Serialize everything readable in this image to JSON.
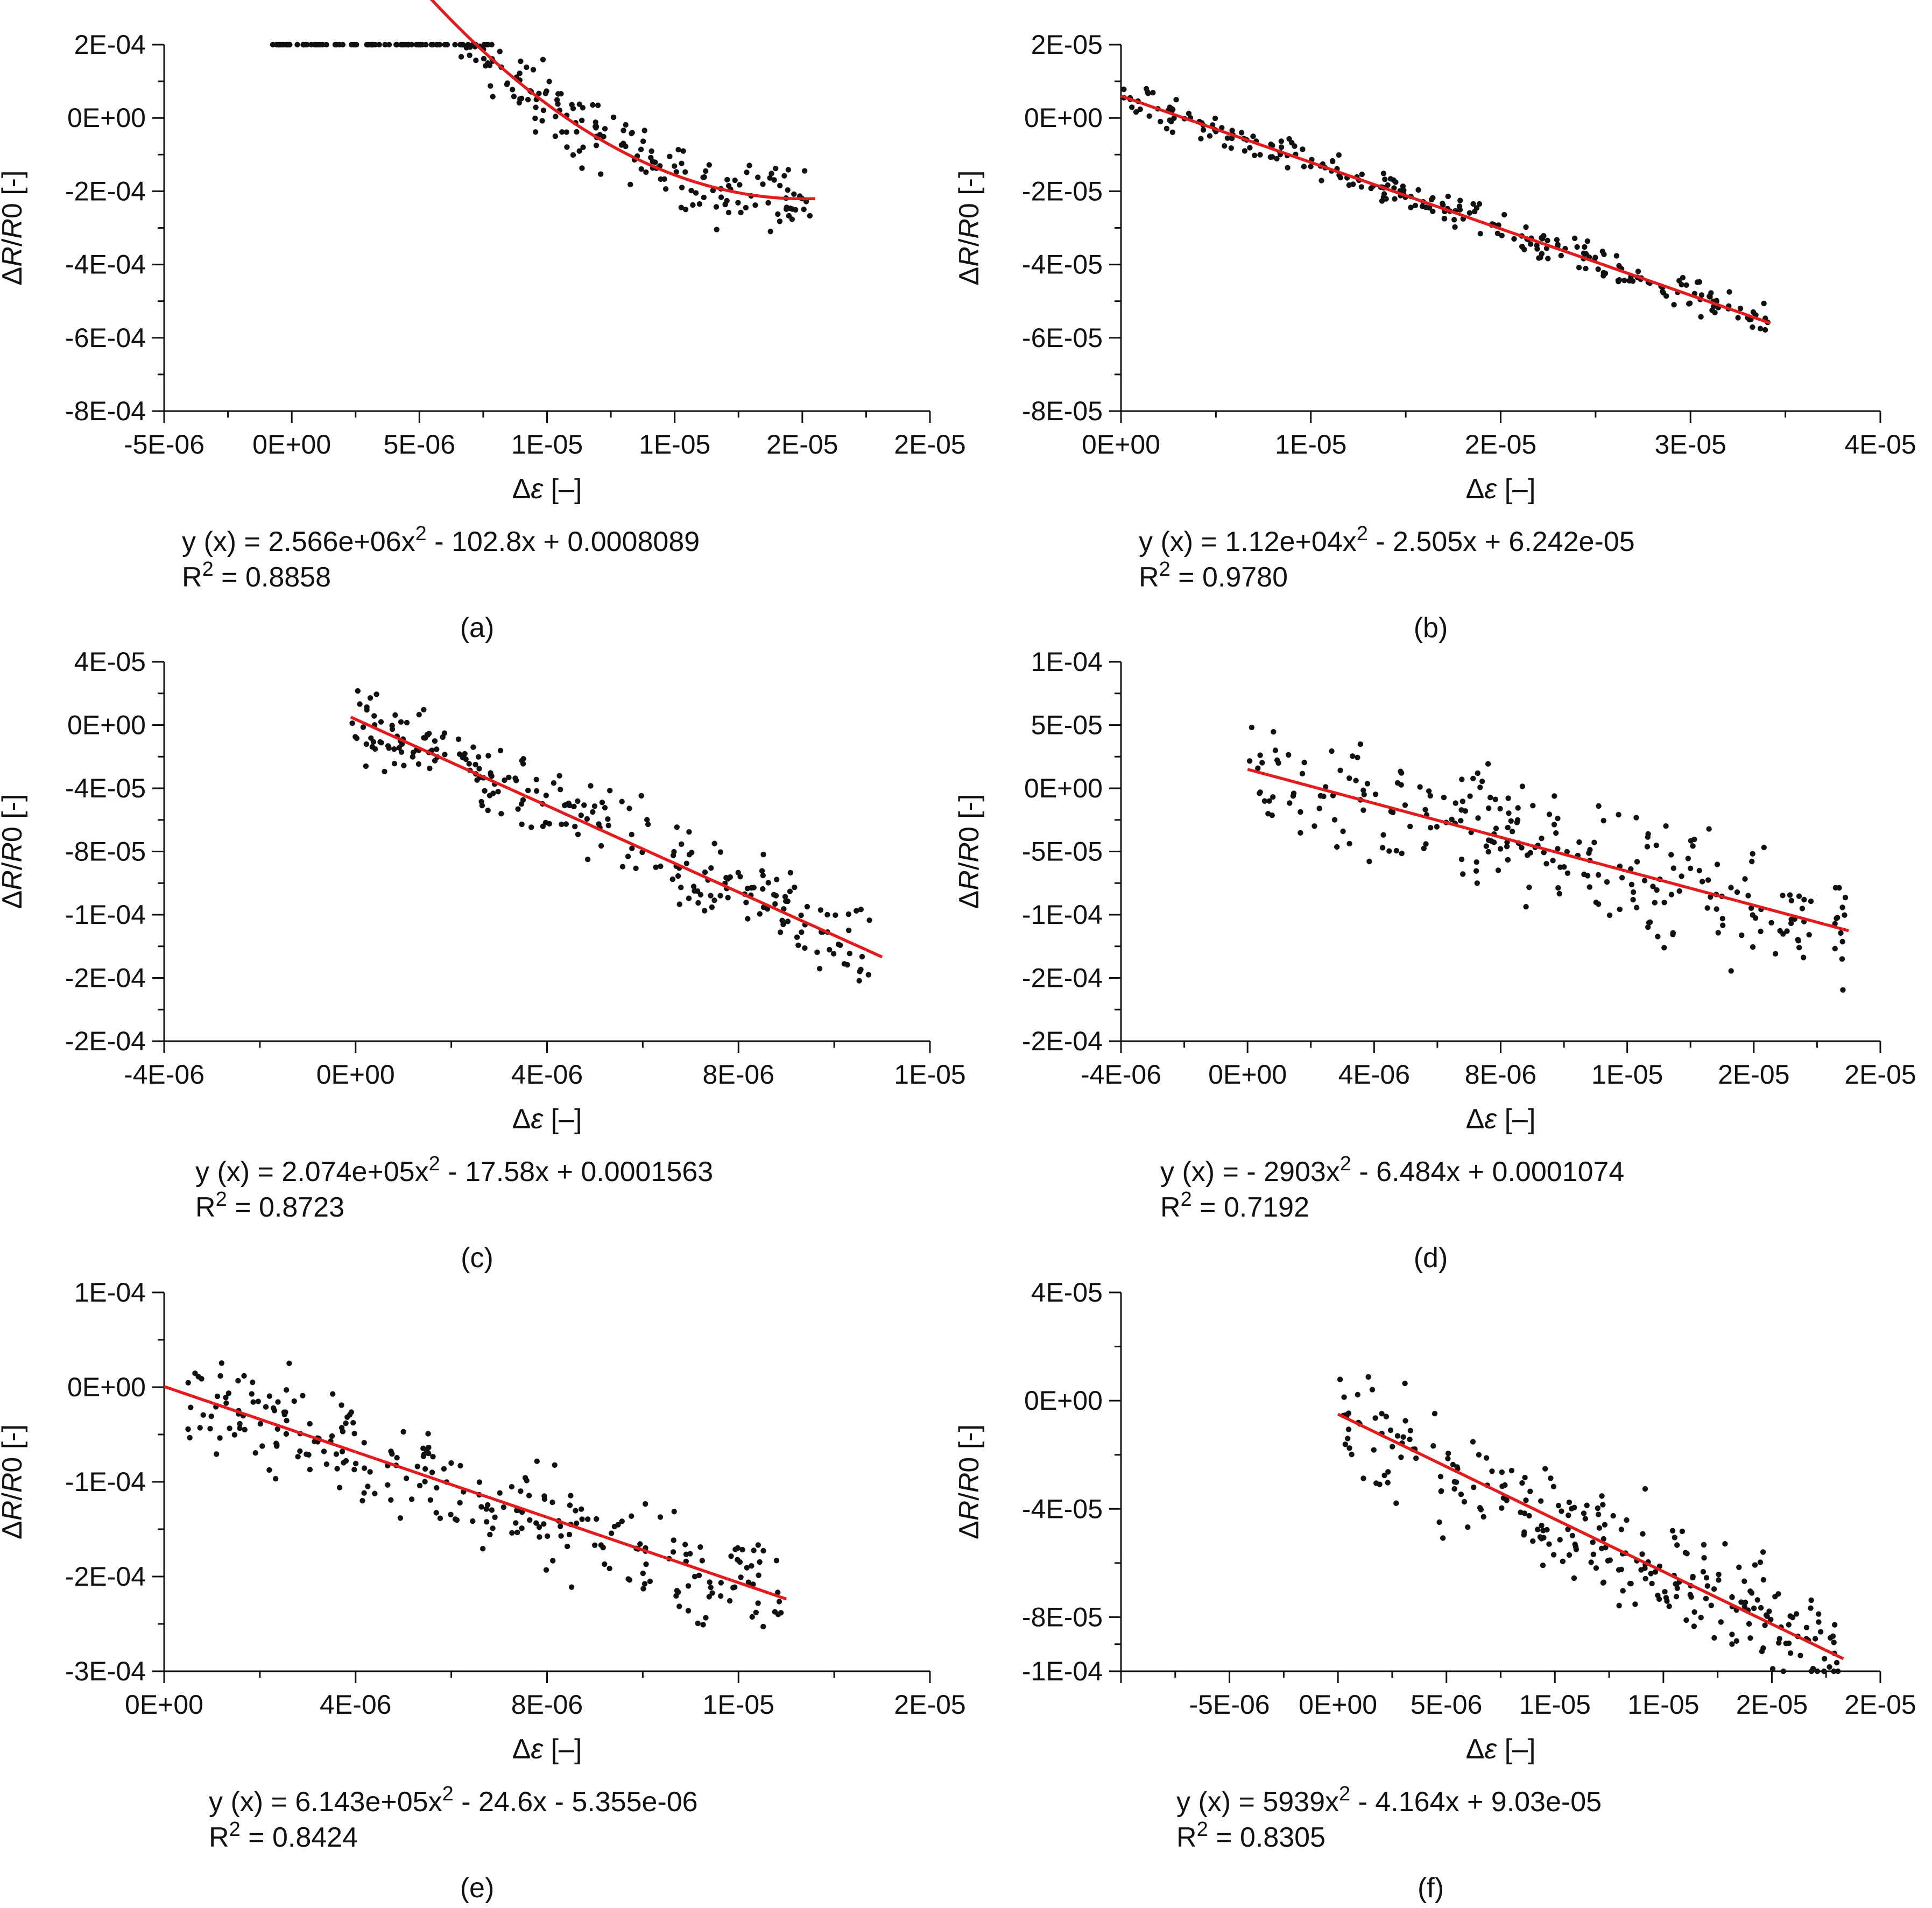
{
  "figure": {
    "ylabel_prefix": "Δ",
    "ylabel_r": "R",
    "ylabel_slash": "/",
    "ylabel_r0": "R",
    "ylabel_suffix": "0 [-]",
    "xlabel_delta": "Δ",
    "xlabel_eps": "ε",
    "xlabel_suffix": " [–]",
    "point_color": "#111111",
    "fit_color": "#e41a1c"
  },
  "chart_data": [
    {
      "id": "a",
      "type": "scatter",
      "label": "(a)",
      "xlim": [
        -5e-06,
        2.5e-05
      ],
      "ylim": [
        -0.0008,
        0.0002
      ],
      "xticks": [
        -5e-06,
        0,
        5e-06,
        1e-05,
        1.5e-05,
        2e-05,
        2.5e-05
      ],
      "xtick_labels": [
        "-5E-06",
        "0E+00",
        "5E-06",
        "1E-05",
        "1E-05",
        "2E-05",
        "2E-05"
      ],
      "yticks": [
        0.0002,
        0,
        -0.0002,
        -0.0004,
        -0.0006,
        -0.0008
      ],
      "ytick_labels": [
        "2E-04",
        "0E+00",
        "-2E-04",
        "-4E-04",
        "-6E-04",
        "-8E-04"
      ],
      "fit": {
        "a": 2566000,
        "b": -102.8,
        "c": 0.0008089,
        "x_range": [
          -1e-06,
          2.05e-05
        ]
      },
      "equation_head": "y (x) = 2.566e+06x",
      "equation_tail": " - 102.8x + 0.0008089",
      "r2_head": "R",
      "r2_tail": " = 0.8858",
      "points": {
        "n": 260,
        "x_range": [
          -1e-06,
          2.03e-05
        ],
        "noise": 4.5e-05,
        "ref": "poly",
        "pa": 2566000,
        "pb": -102.8,
        "pc": 0.0008089,
        "seed": 11
      }
    },
    {
      "id": "b",
      "type": "scatter",
      "label": "(b)",
      "xlim": [
        0,
        4e-05
      ],
      "ylim": [
        -8e-05,
        2e-05
      ],
      "xticks": [
        0,
        1e-05,
        2e-05,
        3e-05,
        4e-05
      ],
      "xtick_labels": [
        "0E+00",
        "1E-05",
        "2E-05",
        "3E-05",
        "4E-05"
      ],
      "yticks": [
        2e-05,
        0,
        -2e-05,
        -4e-05,
        -6e-05,
        -8e-05
      ],
      "ytick_labels": [
        "2E-05",
        "0E+00",
        "-2E-05",
        "-4E-05",
        "-6E-05",
        "-8E-05"
      ],
      "fit": {
        "a": 11200,
        "b": -2.505,
        "c": 6.242e-05,
        "x_range": [
          0,
          3.42e-05
        ]
      },
      "equation_head": "y (x) = 1.12e+04x",
      "equation_tail": " - 2.505x + 6.242e-05",
      "r2_head": "R",
      "r2_tail": " = 0.9780",
      "points": {
        "n": 260,
        "x_range": [
          0,
          3.42e-05
        ],
        "noise": 2.2e-06,
        "ref": "line",
        "y0": 6e-06,
        "y1": -5.6e-05,
        "seed": 23
      }
    },
    {
      "id": "c",
      "type": "scatter",
      "label": "(c)",
      "xlim": [
        -4e-06,
        1.2e-05
      ],
      "ylim": [
        -0.0002,
        4e-05
      ],
      "xticks": [
        -4e-06,
        0,
        4e-06,
        8e-06,
        1.2e-05
      ],
      "xtick_labels": [
        "-4E-06",
        "0E+00",
        "4E-06",
        "8E-06",
        "1E-05"
      ],
      "yticks": [
        4e-05,
        0,
        -4e-05,
        -8e-05,
        -0.00012,
        -0.00016,
        -0.0002
      ],
      "ytick_labels": [
        "4E-05",
        "0E+00",
        "-4E-05",
        "-8E-05",
        "-1E-04",
        "-2E-04",
        "-2E-04"
      ],
      "fit": {
        "a": 207400,
        "b": -17.58,
        "c": 0.0001563,
        "x_range": [
          -1e-07,
          1.1e-05
        ]
      },
      "equation_head": "y (x) = 2.074e+05x",
      "equation_tail": " - 17.58x + 0.0001563",
      "r2_head": "R",
      "r2_tail": " = 0.8723",
      "points": {
        "n": 250,
        "x_range": [
          -1e-07,
          1.08e-05
        ],
        "noise": 1.2e-05,
        "ref": "line",
        "y0": 5e-06,
        "y1": -0.000144,
        "seed": 37
      }
    },
    {
      "id": "d",
      "type": "scatter",
      "label": "(d)",
      "xlim": [
        -4e-06,
        2e-05
      ],
      "ylim": [
        -0.0002,
        0.0001
      ],
      "xticks": [
        -4e-06,
        0,
        4e-06,
        8e-06,
        1.2e-05,
        1.6e-05,
        2e-05
      ],
      "xtick_labels": [
        "-4E-06",
        "0E+00",
        "4E-06",
        "8E-06",
        "1E-05",
        "2E-05",
        "2E-05"
      ],
      "yticks": [
        0.0001,
        5e-05,
        0,
        -5e-05,
        -0.0001,
        -0.00015,
        -0.0002
      ],
      "ytick_labels": [
        "1E-04",
        "5E-05",
        "0E+00",
        "-5E-05",
        "-1E-04",
        "-2E-04",
        "-2E-04"
      ],
      "fit": {
        "a": -2903,
        "b": -6.484,
        "c": 0.0001074,
        "x_range": [
          0,
          1.9e-05
        ]
      },
      "equation_head": "y (x) = - 2903x",
      "equation_tail": " - 6.484x + 0.0001074",
      "r2_head": "R",
      "r2_tail": " = 0.7192",
      "points": {
        "n": 260,
        "x_range": [
          0,
          1.89e-05
        ],
        "noise": 2.2e-05,
        "ref": "line",
        "y0": 1.5e-05,
        "y1": -0.000112,
        "seed": 51
      }
    },
    {
      "id": "e",
      "type": "scatter",
      "label": "(e)",
      "xlim": [
        0,
        1.6e-05
      ],
      "ylim": [
        -0.0003,
        0.0001
      ],
      "xticks": [
        0,
        4e-06,
        8e-06,
        1.2e-05,
        1.6e-05
      ],
      "xtick_labels": [
        "0E+00",
        "4E-06",
        "8E-06",
        "1E-05",
        "2E-05"
      ],
      "yticks": [
        0.0001,
        0,
        -0.0001,
        -0.0002,
        -0.0003
      ],
      "ytick_labels": [
        "1E-04",
        "0E+00",
        "-1E-04",
        "-2E-04",
        "-3E-04"
      ],
      "fit": {
        "a": 614300,
        "b": -24.6,
        "c": -5.355e-06,
        "x_range": [
          0,
          1.3e-05
        ]
      },
      "equation_head": "y (x) = 6.143e+05x",
      "equation_tail": " - 24.6x - 5.355e-06",
      "r2_head": "R",
      "r2_tail": " = 0.8424",
      "points": {
        "n": 270,
        "x_range": [
          5e-07,
          1.29e-05
        ],
        "noise": 2.6e-05,
        "ref": "line",
        "y0": -8e-06,
        "y1": -0.000222,
        "seed": 67
      }
    },
    {
      "id": "f",
      "type": "scatter",
      "label": "(f)",
      "xlim": [
        -1e-05,
        2.5e-05
      ],
      "ylim": [
        -0.0001,
        4e-05
      ],
      "xticks": [
        -1e-05,
        -5e-06,
        0,
        5e-06,
        1e-05,
        1.5e-05,
        2e-05,
        2.5e-05
      ],
      "xtick_labels": [
        "",
        "-5E-06",
        "0E+00",
        "5E-06",
        "1E-05",
        "1E-05",
        "2E-05",
        "2E-05"
      ],
      "yticks": [
        4e-05,
        0,
        -4e-05,
        -8e-05,
        -0.0001
      ],
      "ytick_labels": [
        "4E-05",
        "0E+00",
        "-4E-05",
        "-8E-05",
        "-1E-04"
      ],
      "fit": {
        "a": 5939,
        "b": -4.164,
        "c": 9.03e-05,
        "x_range": [
          0,
          2.33e-05
        ]
      },
      "equation_head": "y (x) = 5939x",
      "equation_tail": " - 4.164x + 9.03e-05",
      "r2_head": "R",
      "r2_tail": " = 0.8305",
      "points": {
        "n": 270,
        "x_range": [
          0,
          2.32e-05
        ],
        "noise": 1e-05,
        "ref": "line",
        "y0": -5e-06,
        "y1": -9.5e-05,
        "seed": 83
      }
    }
  ]
}
